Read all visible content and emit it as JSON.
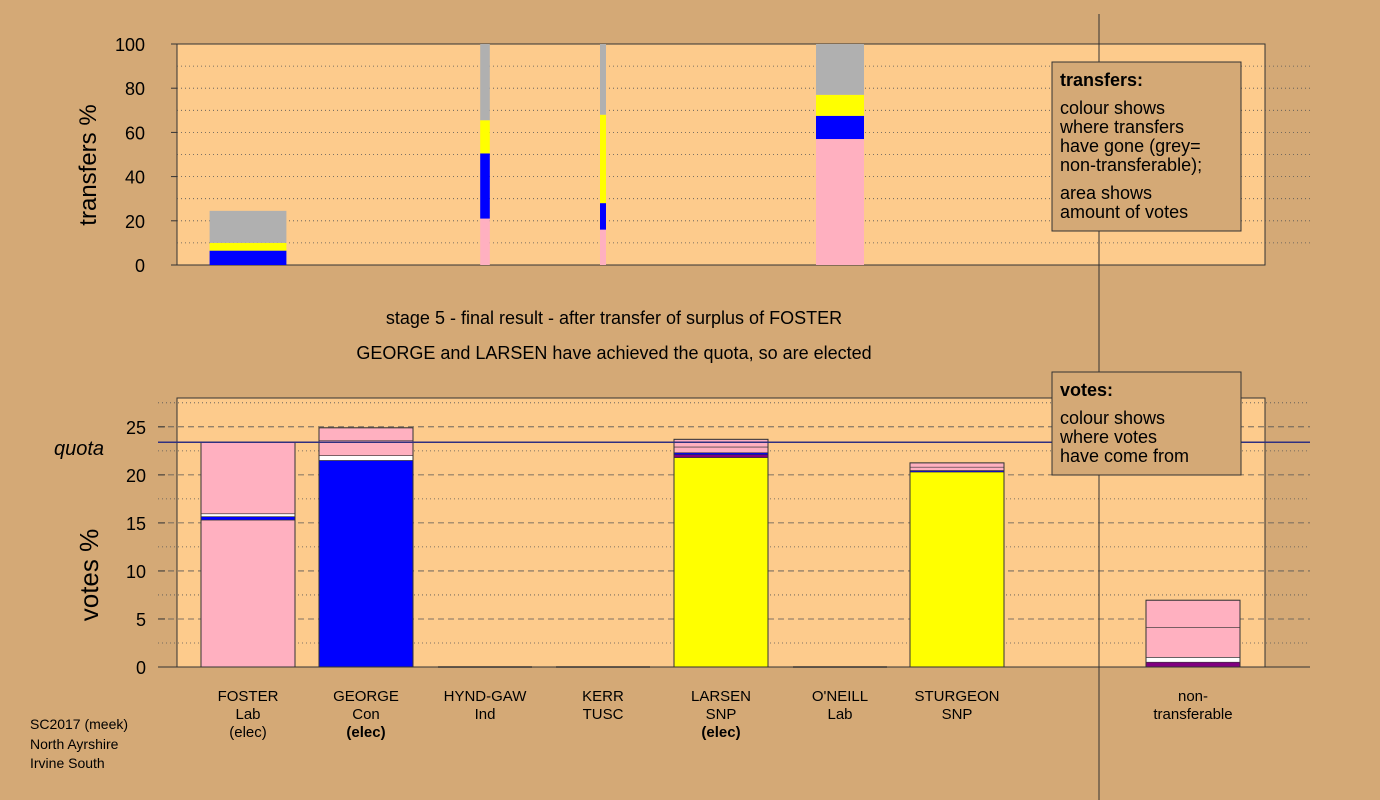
{
  "colors": {
    "background": "#d4a976",
    "plot_background": "#fdcb8c",
    "Con": "#0000ff",
    "SNP": "#ffff00",
    "Lab": "#ffb0c0",
    "non_transferable": "#b0b0b0",
    "quota_line": "#303080"
  },
  "headings": {
    "stage": "stage 5 - final result - after transfer of surplus of FOSTER",
    "result": "GEORGE and LARSEN have achieved the quota, so are elected"
  },
  "footer": [
    "SC2017 (meek)",
    "North Ayrshire",
    "Irvine South"
  ],
  "legend_transfers": {
    "title": "transfers:",
    "lines": [
      "colour shows",
      "where transfers",
      "have gone (grey=",
      "non-transferable);",
      "area shows",
      "amount of votes"
    ]
  },
  "legend_votes": {
    "title": "votes:",
    "lines": [
      "colour shows",
      "where votes",
      "have come from"
    ]
  },
  "chart_data": [
    {
      "type": "bar",
      "stacked": true,
      "ylabel": "transfers %",
      "ylim": [
        0,
        100
      ],
      "yticks": [
        0,
        20,
        40,
        60,
        80,
        100
      ],
      "grid": "dotted horizontal",
      "note": "bar width shows amount of votes transferred",
      "bars": [
        {
          "candidate": "FOSTER",
          "width_share": 0.32,
          "segments": [
            {
              "party": "Con",
              "value": 6.5
            },
            {
              "party": "SNP",
              "value": 3.5
            },
            {
              "party": "non_transferable",
              "value": 14.5
            }
          ]
        },
        {
          "candidate": "HYND-GAW",
          "width_share": 0.04,
          "segments": [
            {
              "party": "Lab",
              "value": 21
            },
            {
              "party": "Con",
              "value": 29.5
            },
            {
              "party": "SNP",
              "value": 15
            },
            {
              "party": "non_transferable",
              "value": 34.5
            }
          ]
        },
        {
          "candidate": "KERR",
          "width_share": 0.025,
          "segments": [
            {
              "party": "Lab",
              "value": 16
            },
            {
              "party": "Con",
              "value": 12
            },
            {
              "party": "SNP",
              "value": 40
            },
            {
              "party": "non_transferable",
              "value": 32
            }
          ]
        },
        {
          "candidate": "O'NEILL",
          "width_share": 0.2,
          "segments": [
            {
              "party": "Lab",
              "value": 57
            },
            {
              "party": "Con",
              "value": 10.5
            },
            {
              "party": "SNP",
              "value": 9.5
            },
            {
              "party": "non_transferable",
              "value": 23
            }
          ]
        }
      ]
    },
    {
      "type": "bar",
      "stacked": true,
      "ylabel": "votes %",
      "ylim": [
        0,
        28
      ],
      "yticks": [
        0,
        5,
        10,
        15,
        20,
        25
      ],
      "quota": 23.4,
      "quota_label": "quota",
      "grid": "dashed horizontal",
      "categories": [
        {
          "name": "FOSTER",
          "party": "Lab",
          "status": "(elec)"
        },
        {
          "name": "GEORGE",
          "party": "Con",
          "status": "(elec)"
        },
        {
          "name": "HYND-GAW",
          "party": "Ind",
          "status": ""
        },
        {
          "name": "KERR",
          "party": "TUSC",
          "status": ""
        },
        {
          "name": "LARSEN",
          "party": "SNP",
          "status": "(elec)"
        },
        {
          "name": "O'NEILL",
          "party": "Lab",
          "status": ""
        },
        {
          "name": "STURGEON",
          "party": "SNP",
          "status": ""
        },
        {
          "name": "non-\ntransferable",
          "party": "",
          "status": ""
        }
      ],
      "series": [
        {
          "candidate": "FOSTER",
          "segments": [
            {
              "party": "Lab",
              "value": 15.3
            },
            {
              "party": "Con",
              "value": 0.35
            },
            {
              "party": "Ind",
              "value": 0.3
            },
            {
              "party": "Lab",
              "value": 7.45
            }
          ]
        },
        {
          "candidate": "GEORGE",
          "segments": [
            {
              "party": "Con",
              "value": 21.5
            },
            {
              "party": "Ind",
              "value": 0.5
            },
            {
              "party": "Lab",
              "value": 1.55
            },
            {
              "party": "Lab",
              "value": 1.35
            }
          ]
        },
        {
          "candidate": "HYND-GAW",
          "segments": []
        },
        {
          "candidate": "KERR",
          "segments": []
        },
        {
          "candidate": "LARSEN",
          "segments": [
            {
              "party": "SNP",
              "value": 21.8
            },
            {
              "party": "TUSC",
              "value": 0.3
            },
            {
              "party": "Con",
              "value": 0.2
            },
            {
              "party": "Lab",
              "value": 0.6
            },
            {
              "party": "Lab",
              "value": 0.8
            }
          ]
        },
        {
          "candidate": "O'NEILL",
          "segments": []
        },
        {
          "candidate": "STURGEON",
          "segments": [
            {
              "party": "SNP",
              "value": 20.3
            },
            {
              "party": "Con",
              "value": 0.15
            },
            {
              "party": "Lab",
              "value": 0.35
            },
            {
              "party": "Lab",
              "value": 0.45
            }
          ]
        },
        {
          "candidate": "non-transferable",
          "segments": [
            {
              "party": "TUSC",
              "value": 0.5
            },
            {
              "party": "Ind",
              "value": 0.5
            },
            {
              "party": "Lab",
              "value": 3.1
            },
            {
              "party": "Lab",
              "value": 2.85
            }
          ]
        }
      ]
    }
  ]
}
